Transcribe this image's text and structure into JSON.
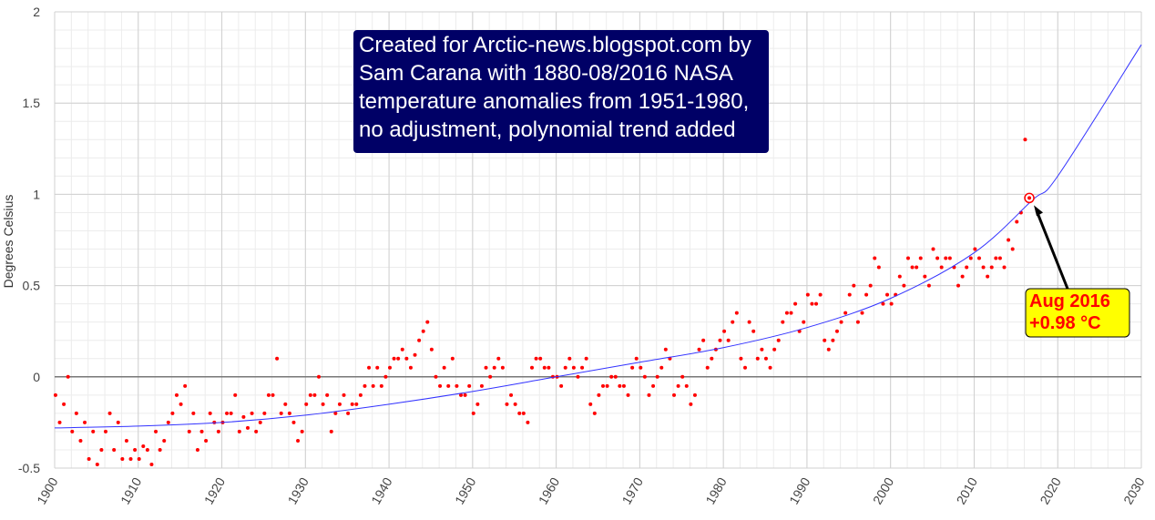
{
  "chart_data": {
    "type": "scatter",
    "y_label": "Degrees Celsius",
    "xlim": [
      1900,
      2030
    ],
    "ylim": [
      -0.5,
      2
    ],
    "xticks": [
      1900,
      1910,
      1920,
      1930,
      1940,
      1950,
      1960,
      1970,
      1980,
      1990,
      2000,
      2010,
      2020,
      2030
    ],
    "yticks": [
      -0.5,
      0,
      0.5,
      1,
      1.5,
      2
    ],
    "grid": true,
    "minor_grid": {
      "x": 2,
      "y": 0.1
    },
    "series": [
      {
        "name": "NASA temperature anomalies",
        "color": "#ff0000",
        "kind": "points",
        "x": [
          1900.1,
          1900.6,
          1901.1,
          1901.6,
          1902.1,
          1902.6,
          1903.1,
          1903.6,
          1904.1,
          1904.6,
          1905.1,
          1905.6,
          1906.1,
          1906.6,
          1907.1,
          1907.6,
          1908.1,
          1908.6,
          1909.1,
          1909.6,
          1910.1,
          1910.6,
          1911.1,
          1911.6,
          1912.1,
          1912.6,
          1913.1,
          1913.6,
          1914.1,
          1914.6,
          1915.1,
          1915.6,
          1916.1,
          1916.6,
          1917.1,
          1917.6,
          1918.1,
          1918.6,
          1919.1,
          1919.6,
          1920.1,
          1920.6,
          1921.1,
          1921.6,
          1922.1,
          1922.6,
          1923.1,
          1923.6,
          1924.1,
          1924.6,
          1925.1,
          1925.6,
          1926.1,
          1926.6,
          1927.1,
          1927.6,
          1928.1,
          1928.6,
          1929.1,
          1929.6,
          1930.1,
          1930.6,
          1931.1,
          1931.6,
          1932.1,
          1932.6,
          1933.1,
          1933.6,
          1934.1,
          1934.6,
          1935.1,
          1935.6,
          1936.1,
          1936.6,
          1937.1,
          1937.6,
          1938.1,
          1938.6,
          1939.1,
          1939.6,
          1940.1,
          1940.6,
          1941.1,
          1941.6,
          1942.1,
          1942.6,
          1943.1,
          1943.6,
          1944.1,
          1944.6,
          1945.1,
          1945.6,
          1946.1,
          1946.6,
          1947.1,
          1947.6,
          1948.1,
          1948.6,
          1949.1,
          1949.6,
          1950.1,
          1950.6,
          1951.1,
          1951.6,
          1952.1,
          1952.6,
          1953.1,
          1953.6,
          1954.1,
          1954.6,
          1955.1,
          1955.6,
          1956.1,
          1956.6,
          1957.1,
          1957.6,
          1958.1,
          1958.6,
          1959.1,
          1959.6,
          1960.1,
          1960.6,
          1961.1,
          1961.6,
          1962.1,
          1962.6,
          1963.1,
          1963.6,
          1964.1,
          1964.6,
          1965.1,
          1965.6,
          1966.1,
          1966.6,
          1967.1,
          1967.6,
          1968.1,
          1968.6,
          1969.1,
          1969.6,
          1970.1,
          1970.6,
          1971.1,
          1971.6,
          1972.1,
          1972.6,
          1973.1,
          1973.6,
          1974.1,
          1974.6,
          1975.1,
          1975.6,
          1976.1,
          1976.6,
          1977.1,
          1977.6,
          1978.1,
          1978.6,
          1979.1,
          1979.6,
          1980.1,
          1980.6,
          1981.1,
          1981.6,
          1982.1,
          1982.6,
          1983.1,
          1983.6,
          1984.1,
          1984.6,
          1985.1,
          1985.6,
          1986.1,
          1986.6,
          1987.1,
          1987.6,
          1988.1,
          1988.6,
          1989.1,
          1989.6,
          1990.1,
          1990.6,
          1991.1,
          1991.6,
          1992.1,
          1992.6,
          1993.1,
          1993.6,
          1994.1,
          1994.6,
          1995.1,
          1995.6,
          1996.1,
          1996.6,
          1997.1,
          1997.6,
          1998.1,
          1998.6,
          1999.1,
          1999.6,
          2000.1,
          2000.6,
          2001.1,
          2001.6,
          2002.1,
          2002.6,
          2003.1,
          2003.6,
          2004.1,
          2004.6,
          2005.1,
          2005.6,
          2006.1,
          2006.6,
          2007.1,
          2007.6,
          2008.1,
          2008.6,
          2009.1,
          2009.6,
          2010.1,
          2010.6,
          2011.1,
          2011.6,
          2012.1,
          2012.6,
          2013.1,
          2013.6,
          2014.1,
          2014.6,
          2015.1,
          2015.6,
          2016.1,
          2016.6
        ],
        "values": [
          -0.1,
          -0.25,
          -0.15,
          0.0,
          -0.3,
          -0.2,
          -0.35,
          -0.25,
          -0.45,
          -0.3,
          -0.48,
          -0.4,
          -0.3,
          -0.2,
          -0.4,
          -0.25,
          -0.45,
          -0.35,
          -0.45,
          -0.4,
          -0.45,
          -0.38,
          -0.4,
          -0.48,
          -0.3,
          -0.4,
          -0.35,
          -0.25,
          -0.2,
          -0.1,
          -0.15,
          -0.05,
          -0.3,
          -0.2,
          -0.4,
          -0.3,
          -0.35,
          -0.2,
          -0.25,
          -0.3,
          -0.25,
          -0.2,
          -0.2,
          -0.1,
          -0.3,
          -0.22,
          -0.28,
          -0.2,
          -0.3,
          -0.25,
          -0.2,
          -0.1,
          -0.1,
          0.1,
          -0.2,
          -0.15,
          -0.2,
          -0.25,
          -0.35,
          -0.3,
          -0.15,
          -0.1,
          -0.1,
          0.0,
          -0.15,
          -0.1,
          -0.3,
          -0.2,
          -0.15,
          -0.1,
          -0.2,
          -0.15,
          -0.15,
          -0.1,
          -0.05,
          0.05,
          -0.05,
          0.05,
          -0.05,
          0.0,
          0.05,
          0.1,
          0.1,
          0.15,
          0.1,
          0.05,
          0.12,
          0.2,
          0.25,
          0.3,
          0.15,
          0.0,
          -0.05,
          0.05,
          -0.05,
          0.1,
          -0.05,
          -0.1,
          -0.1,
          -0.05,
          -0.2,
          -0.15,
          -0.05,
          0.05,
          0.0,
          0.05,
          0.1,
          0.05,
          -0.15,
          -0.1,
          -0.15,
          -0.2,
          -0.2,
          -0.25,
          0.05,
          0.1,
          0.1,
          0.05,
          0.05,
          0.0,
          0.0,
          -0.05,
          0.05,
          0.1,
          0.05,
          0.0,
          0.05,
          0.1,
          -0.15,
          -0.2,
          -0.1,
          -0.05,
          -0.05,
          0.0,
          0.0,
          -0.05,
          -0.05,
          -0.1,
          0.05,
          0.1,
          0.05,
          0.0,
          -0.1,
          -0.05,
          0.0,
          0.05,
          0.15,
          0.1,
          -0.1,
          -0.05,
          0.0,
          -0.05,
          -0.15,
          -0.1,
          0.15,
          0.2,
          0.05,
          0.1,
          0.15,
          0.2,
          0.25,
          0.2,
          0.3,
          0.35,
          0.1,
          0.05,
          0.3,
          0.25,
          0.1,
          0.15,
          0.1,
          0.05,
          0.15,
          0.2,
          0.3,
          0.35,
          0.35,
          0.4,
          0.25,
          0.3,
          0.45,
          0.4,
          0.4,
          0.45,
          0.2,
          0.15,
          0.2,
          0.25,
          0.3,
          0.35,
          0.45,
          0.5,
          0.3,
          0.35,
          0.45,
          0.5,
          0.65,
          0.6,
          0.4,
          0.45,
          0.4,
          0.45,
          0.55,
          0.5,
          0.65,
          0.6,
          0.6,
          0.65,
          0.55,
          0.5,
          0.7,
          0.65,
          0.6,
          0.65,
          0.65,
          0.6,
          0.5,
          0.55,
          0.6,
          0.65,
          0.7,
          0.65,
          0.6,
          0.55,
          0.6,
          0.65,
          0.65,
          0.6,
          0.75,
          0.7,
          0.85,
          0.9,
          1.3,
          0.98
        ]
      },
      {
        "name": "polynomial trend",
        "color": "#3333ff",
        "kind": "line",
        "x": [
          1900,
          1910,
          1920,
          1930,
          1940,
          1950,
          1960,
          1970,
          1980,
          1990,
          2000,
          2010,
          2017,
          2020,
          2030
        ],
        "values": [
          -0.28,
          -0.27,
          -0.25,
          -0.21,
          -0.15,
          -0.08,
          0.0,
          0.08,
          0.16,
          0.27,
          0.43,
          0.68,
          0.97,
          1.1,
          1.82
        ]
      }
    ],
    "info_box": [
      "Created for Arctic-news.blogspot.com by",
      "Sam Carana with 1880-08/2016 NASA",
      "temperature anomalies from 1951-1980,",
      "no adjustment, polynomial trend added"
    ],
    "callout": {
      "lines": [
        "Aug 2016",
        "+0.98 °C"
      ],
      "x": 2016.6,
      "y": 0.98
    }
  }
}
